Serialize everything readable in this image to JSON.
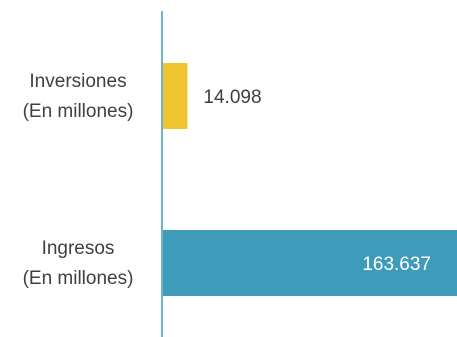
{
  "chart_data": {
    "type": "bar",
    "orientation": "horizontal",
    "categories": [
      [
        "Inversiones",
        "(En millones)"
      ],
      [
        "Ingresos",
        "(En millones)"
      ]
    ],
    "values": [
      14098,
      163637
    ],
    "value_labels": [
      "14.098",
      "163.637"
    ],
    "colors": [
      "#f0c530",
      "#3e9bb9"
    ],
    "label_colors": [
      "#404040",
      "#ffffff"
    ],
    "label_positions": [
      "outside",
      "inside"
    ],
    "axis_color": "#3e9bb9",
    "grid": false,
    "legend": "none",
    "title": "",
    "xlabel": "",
    "ylabel": ""
  }
}
